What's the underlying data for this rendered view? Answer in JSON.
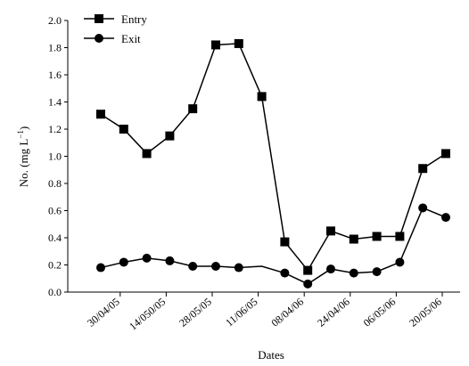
{
  "chart_data": {
    "type": "line",
    "xlabel": "Dates",
    "ylabel": "No. (mg L",
    "ylabel_sup": "−1",
    "ylabel_end": ")",
    "ylim": [
      0,
      2.0
    ],
    "yticks": [
      0.0,
      0.2,
      0.4,
      0.6,
      0.8,
      1.0,
      1.2,
      1.4,
      1.6,
      1.8,
      2.0
    ],
    "ytick_labels": [
      "0.0",
      "0.2",
      "0.4",
      "0.6",
      "0.8",
      "1.0",
      "1.2",
      "1.4",
      "1.6",
      "1.8",
      "2.0"
    ],
    "x_tick_labels": [
      "30/04/05",
      "14/050/05",
      "28/05/05",
      "11/06/05",
      "08/04/06",
      "24/04/06",
      "06/05/06",
      "20/05/06"
    ],
    "legend_position": "top-left",
    "grid": false,
    "series": [
      {
        "name": "Entry",
        "marker": "square",
        "values": [
          1.31,
          1.2,
          1.02,
          1.15,
          1.35,
          1.82,
          1.83,
          1.44,
          0.37,
          0.16,
          0.45,
          0.39,
          0.41,
          0.41,
          0.91,
          1.02
        ]
      },
      {
        "name": "Exit",
        "marker": "circle",
        "values": [
          0.18,
          0.22,
          0.25,
          0.23,
          0.19,
          0.19,
          0.18,
          0.19,
          0.14,
          0.06,
          0.17,
          0.14,
          0.15,
          0.22,
          0.62,
          0.55
        ],
        "no_marker_indices": [
          7
        ]
      }
    ]
  }
}
